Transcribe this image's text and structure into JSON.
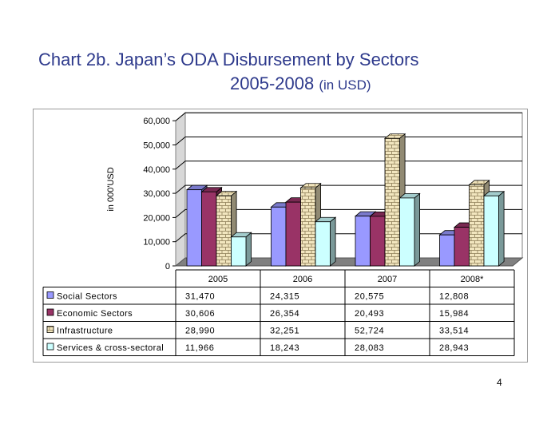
{
  "title": {
    "line1": "Chart 2b.   Japan’s ODA Disbursement by Sectors",
    "line2": "2005-2008",
    "unit_note": "(in USD)"
  },
  "page_number": "4",
  "colors": {
    "title": "#2E3A8C",
    "Social Sectors": "#9999FF",
    "Economic Sectors": "#993366",
    "Infrastructure": "#F2E6BF",
    "Services & cross-sectoral": "#CCFFFF"
  },
  "chart_data": {
    "type": "bar",
    "variant": "3d-clustered-column-with-data-table",
    "title": "",
    "xlabel": "",
    "ylabel": "in 000'USD",
    "ylim": [
      0,
      60000
    ],
    "y_ticks": [
      "0",
      "10,000",
      "20,000",
      "30,000",
      "40,000",
      "50,000",
      "60,000"
    ],
    "grid": true,
    "categories": [
      "2005",
      "2006",
      "2007",
      "2008*"
    ],
    "series": [
      {
        "name": "Social Sectors",
        "values": [
          31470,
          24315,
          20575,
          12808
        ],
        "labels": [
          "31,470",
          "24,315",
          "20,575",
          "12,808"
        ]
      },
      {
        "name": "Economic Sectors",
        "values": [
          30606,
          26354,
          20493,
          15984
        ],
        "labels": [
          "30,606",
          "26,354",
          "20,493",
          "15,984"
        ]
      },
      {
        "name": "Infrastructure",
        "values": [
          28990,
          32251,
          52724,
          33514
        ],
        "labels": [
          "28,990",
          "32,251",
          "52,724",
          "33,514"
        ]
      },
      {
        "name": "Services & cross-sectoral",
        "values": [
          11966,
          18243,
          28083,
          28943
        ],
        "labels": [
          "11,966",
          "18,243",
          "28,083",
          "28,943"
        ]
      }
    ],
    "legend": "data-table-left"
  }
}
